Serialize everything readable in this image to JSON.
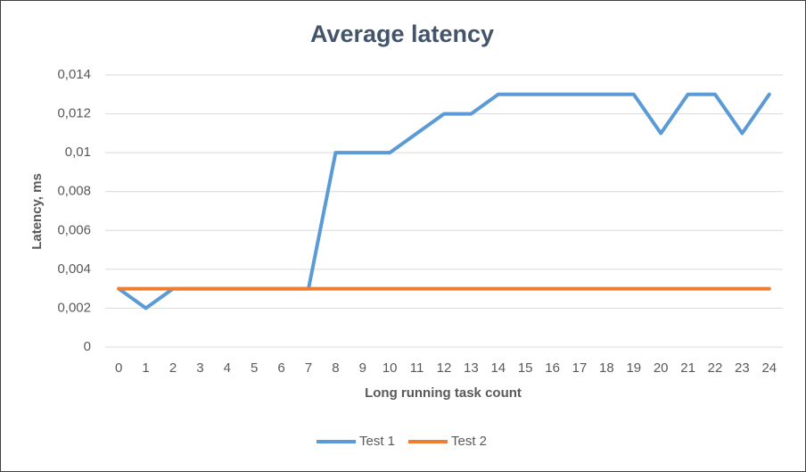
{
  "chart_data": {
    "type": "line",
    "title": "Average latency",
    "x_label": "Long running task count",
    "y_label": "Latency, ms",
    "categories": [
      "0",
      "1",
      "2",
      "3",
      "4",
      "5",
      "6",
      "7",
      "8",
      "9",
      "10",
      "11",
      "12",
      "13",
      "14",
      "15",
      "16",
      "17",
      "18",
      "19",
      "20",
      "21",
      "22",
      "23",
      "24"
    ],
    "series": [
      {
        "name": "Test 1",
        "color": "#5b9bd5",
        "values": [
          0.003,
          0.002,
          0.003,
          0.003,
          0.003,
          0.003,
          0.003,
          0.003,
          0.01,
          0.01,
          0.01,
          0.011,
          0.012,
          0.012,
          0.013,
          0.013,
          0.013,
          0.013,
          0.013,
          0.013,
          0.011,
          0.013,
          0.013,
          0.011,
          0.013
        ]
      },
      {
        "name": "Test 2",
        "color": "#ed7d31",
        "values": [
          0.003,
          0.003,
          0.003,
          0.003,
          0.003,
          0.003,
          0.003,
          0.003,
          0.003,
          0.003,
          0.003,
          0.003,
          0.003,
          0.003,
          0.003,
          0.003,
          0.003,
          0.003,
          0.003,
          0.003,
          0.003,
          0.003,
          0.003,
          0.003,
          0.003
        ]
      }
    ],
    "ylim": [
      0,
      0.014
    ],
    "yticks": [
      0,
      {
        "value": 0.002,
        "label": "0,002"
      },
      {
        "value": 0.004,
        "label": "0,004"
      },
      {
        "value": 0.006,
        "label": "0,006"
      },
      {
        "value": 0.008,
        "label": "0,008"
      },
      {
        "value": 0.01,
        "label": "0,01"
      },
      {
        "value": 0.012,
        "label": "0,012"
      },
      {
        "value": 0.014,
        "label": "0,014"
      }
    ],
    "grid": true,
    "legend": "bottom"
  }
}
